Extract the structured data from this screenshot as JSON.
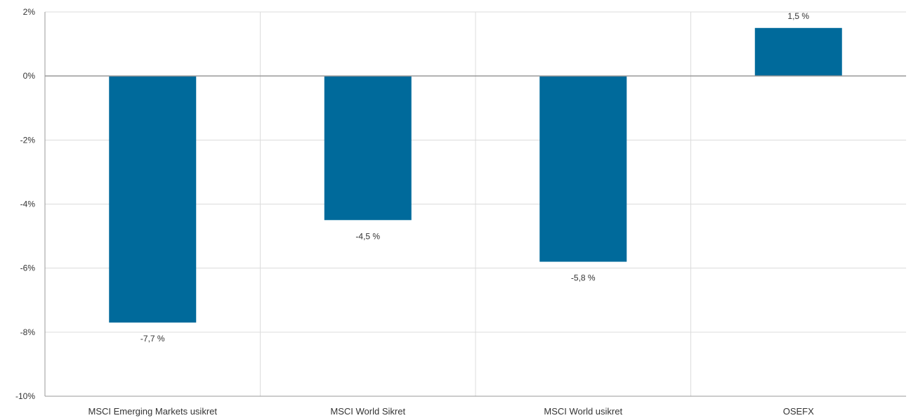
{
  "chart_data": {
    "type": "bar",
    "title": "",
    "xlabel": "",
    "ylabel": "",
    "categories": [
      "MSCI Emerging Markets usikret",
      "MSCI World Sikret",
      "MSCI World usikret",
      "OSEFX"
    ],
    "values": [
      -7.7,
      -4.5,
      -5.8,
      1.5
    ],
    "data_labels": [
      "-7,7 %",
      "-4,5 %",
      "-5,8 %",
      "1,5 %"
    ],
    "ylim": [
      -10,
      2
    ],
    "yticks": [
      2,
      0,
      -2,
      -4,
      -6,
      -8,
      -10
    ],
    "ytick_labels": [
      "2%",
      "0%",
      "-2%",
      "-4%",
      "-6%",
      "-8%",
      "-10%"
    ],
    "grid": true,
    "legend": "none",
    "colors": {
      "bar": "#006a9b",
      "grid": "#dcdcdc",
      "axis": "#999999",
      "text": "#333333"
    }
  }
}
